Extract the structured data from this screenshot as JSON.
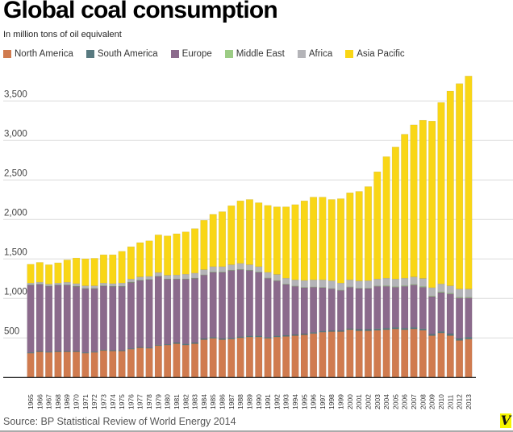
{
  "chart_data": {
    "type": "bar",
    "stacked": true,
    "title": "Global coal consumption",
    "subtitle": "In million tons of oil equivalent",
    "source": "Source: BP Statistical Review of World Energy 2014",
    "xlabel": "",
    "ylabel": "",
    "ylim": [
      0,
      3850
    ],
    "yticks": [
      500,
      1000,
      1500,
      2000,
      2500,
      3000,
      3500
    ],
    "ytick_labels": [
      "500",
      "1,000",
      "1,500",
      "2,000",
      "2,500",
      "3,000",
      "3,500"
    ],
    "grid": true,
    "legend_position": "top-left",
    "categories": [
      "1965",
      "1966",
      "1967",
      "1968",
      "1969",
      "1970",
      "1971",
      "1972",
      "1973",
      "1974",
      "1975",
      "1976",
      "1977",
      "1978",
      "1979",
      "1980",
      "1981",
      "1982",
      "1983",
      "1984",
      "1985",
      "1986",
      "1987",
      "1988",
      "1989",
      "1990",
      "1991",
      "1992",
      "1993",
      "1994",
      "1995",
      "1996",
      "1997",
      "1998",
      "1999",
      "2000",
      "2001",
      "2002",
      "2003",
      "2004",
      "2005",
      "2006",
      "2007",
      "2008",
      "2009",
      "2010",
      "2011",
      "2012",
      "2013"
    ],
    "series": [
      {
        "name": "North America",
        "color": "#d07b4f",
        "values": [
          307,
          324,
          317,
          324,
          324,
          324,
          307,
          317,
          341,
          334,
          334,
          358,
          375,
          369,
          403,
          410,
          427,
          410,
          427,
          478,
          495,
          478,
          485,
          502,
          512,
          512,
          495,
          512,
          519,
          529,
          539,
          556,
          573,
          580,
          580,
          604,
          590,
          590,
          597,
          604,
          614,
          604,
          614,
          597,
          529,
          563,
          529,
          468,
          485
        ]
      },
      {
        "name": "South America",
        "color": "#587a80",
        "values": [
          10,
          10,
          10,
          10,
          10,
          10,
          10,
          10,
          10,
          10,
          10,
          10,
          10,
          10,
          10,
          10,
          15,
          15,
          15,
          15,
          15,
          15,
          15,
          15,
          15,
          15,
          15,
          15,
          15,
          15,
          15,
          15,
          15,
          15,
          15,
          15,
          20,
          20,
          20,
          20,
          20,
          20,
          20,
          20,
          20,
          20,
          25,
          25,
          25
        ]
      },
      {
        "name": "Europe",
        "color": "#8b6a8c",
        "values": [
          854,
          847,
          830,
          837,
          837,
          820,
          809,
          799,
          809,
          810,
          810,
          837,
          844,
          860,
          867,
          826,
          804,
          821,
          814,
          804,
          821,
          838,
          855,
          848,
          828,
          804,
          746,
          695,
          643,
          610,
          583,
          572,
          549,
          528,
          507,
          524,
          516,
          516,
          537,
          530,
          509,
          530,
          537,
          526,
          475,
          492,
          504,
          514,
          497
        ]
      },
      {
        "name": "Middle East",
        "color": "#9ccc85",
        "values": [
          2,
          2,
          2,
          2,
          2,
          2,
          2,
          2,
          2,
          2,
          2,
          2,
          3,
          3,
          3,
          3,
          3,
          3,
          3,
          4,
          4,
          4,
          4,
          4,
          4,
          4,
          5,
          5,
          5,
          5,
          5,
          5,
          5,
          5,
          5,
          6,
          6,
          6,
          6,
          7,
          7,
          7,
          8,
          8,
          8,
          9,
          9,
          9,
          9
        ]
      },
      {
        "name": "Africa",
        "color": "#b4b4b8",
        "values": [
          22,
          22,
          22,
          22,
          32,
          32,
          32,
          32,
          33,
          32,
          39,
          39,
          41,
          38,
          45,
          45,
          48,
          58,
          62,
          64,
          68,
          68,
          68,
          75,
          68,
          68,
          70,
          77,
          74,
          77,
          87,
          88,
          94,
          97,
          88,
          87,
          90,
          93,
          86,
          95,
          96,
          95,
          94,
          102,
          105,
          100,
          93,
          103,
          103
        ]
      },
      {
        "name": "Asia Pacific",
        "color": "#f9d616",
        "values": [
          238,
          252,
          246,
          256,
          283,
          324,
          342,
          349,
          358,
          365,
          402,
          409,
          434,
          450,
          477,
          498,
          522,
          536,
          563,
          625,
          662,
          696,
          747,
          792,
          826,
          809,
          847,
          856,
          904,
          952,
          1007,
          1047,
          1047,
          1028,
          1068,
          1102,
          1133,
          1191,
          1358,
          1539,
          1672,
          1823,
          1925,
          2003,
          2109,
          2297,
          2465,
          2601,
          2697
        ]
      }
    ]
  },
  "logo_text": "V"
}
